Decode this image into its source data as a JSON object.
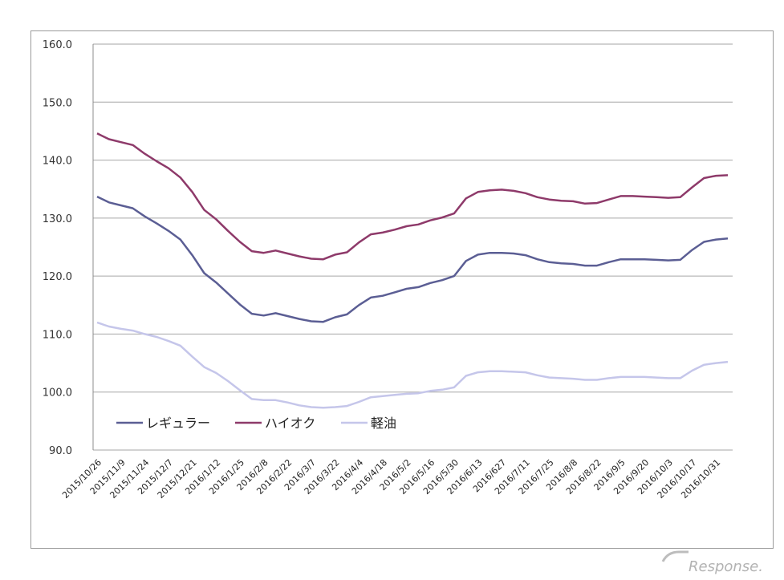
{
  "chart_data": {
    "type": "line",
    "ylim": [
      90,
      160
    ],
    "y_ticks": [
      "160.0",
      "150.0",
      "140.0",
      "130.0",
      "120.0",
      "110.0",
      "100.0",
      "90.0"
    ],
    "x_tick_labels": [
      "2015/10/26",
      "2015/11/9",
      "2015/11/24",
      "2015/12/7",
      "2015/12/21",
      "2016/1/12",
      "2016/1/25",
      "2016/2/8",
      "2016/2/22",
      "2016/3/7",
      "2016/3/22",
      "2016/4/4",
      "2016/4/18",
      "2016/5/2",
      "2016/5/16",
      "2016/5/30",
      "2016/6/13",
      "2016/627",
      "2016/7/11",
      "2016/7/25",
      "2016/8/8",
      "2016/8/22",
      "2016/9/5",
      "2016/9/20",
      "2016/10/3",
      "2016/10/17",
      "2016/10/31"
    ],
    "grid": true,
    "legend_position": "bottom-left",
    "series": [
      {
        "name": "レギュラー",
        "color": "#5b5e94",
        "values": [
          133.7,
          132.7,
          132.2,
          131.7,
          130.3,
          129.1,
          127.8,
          126.3,
          123.6,
          120.5,
          118.9,
          117.0,
          115.1,
          113.5,
          113.2,
          113.6,
          113.1,
          112.6,
          112.2,
          112.1,
          112.9,
          113.4,
          115.0,
          116.3,
          116.6,
          117.2,
          117.8,
          118.1,
          118.8,
          119.3,
          120.0,
          122.6,
          123.7,
          124.0,
          124.0,
          123.9,
          123.6,
          122.9,
          122.4,
          122.2,
          122.1,
          121.8,
          121.8,
          122.4,
          122.9,
          122.9,
          122.9,
          122.8,
          122.7,
          122.8,
          124.5,
          125.9,
          126.3,
          126.5
        ]
      },
      {
        "name": "ハイオク",
        "color": "#8e3a6a",
        "values": [
          144.6,
          143.6,
          143.1,
          142.6,
          141.1,
          139.8,
          138.6,
          137.0,
          134.5,
          131.4,
          129.8,
          127.8,
          125.9,
          124.3,
          124.0,
          124.4,
          123.9,
          123.4,
          123.0,
          122.9,
          123.7,
          124.1,
          125.8,
          127.2,
          127.5,
          128.0,
          128.6,
          128.9,
          129.6,
          130.1,
          130.8,
          133.4,
          134.5,
          134.8,
          134.9,
          134.7,
          134.3,
          133.6,
          133.2,
          133.0,
          132.9,
          132.5,
          132.6,
          133.2,
          133.8,
          133.8,
          133.7,
          133.6,
          133.5,
          133.6,
          135.3,
          136.9,
          137.3,
          137.4
        ]
      },
      {
        "name": "軽油",
        "color": "#c5c6ea",
        "values": [
          112.0,
          111.3,
          110.9,
          110.6,
          110.0,
          109.5,
          108.8,
          108.0,
          106.1,
          104.3,
          103.3,
          101.9,
          100.3,
          98.8,
          98.6,
          98.6,
          98.2,
          97.7,
          97.4,
          97.3,
          97.4,
          97.6,
          98.3,
          99.1,
          99.3,
          99.5,
          99.7,
          99.8,
          100.2,
          100.4,
          100.8,
          102.8,
          103.4,
          103.6,
          103.6,
          103.5,
          103.4,
          102.9,
          102.5,
          102.4,
          102.3,
          102.1,
          102.1,
          102.4,
          102.6,
          102.6,
          102.6,
          102.5,
          102.4,
          102.4,
          103.7,
          104.7,
          105.0,
          105.2
        ]
      }
    ]
  },
  "watermark": "Response."
}
